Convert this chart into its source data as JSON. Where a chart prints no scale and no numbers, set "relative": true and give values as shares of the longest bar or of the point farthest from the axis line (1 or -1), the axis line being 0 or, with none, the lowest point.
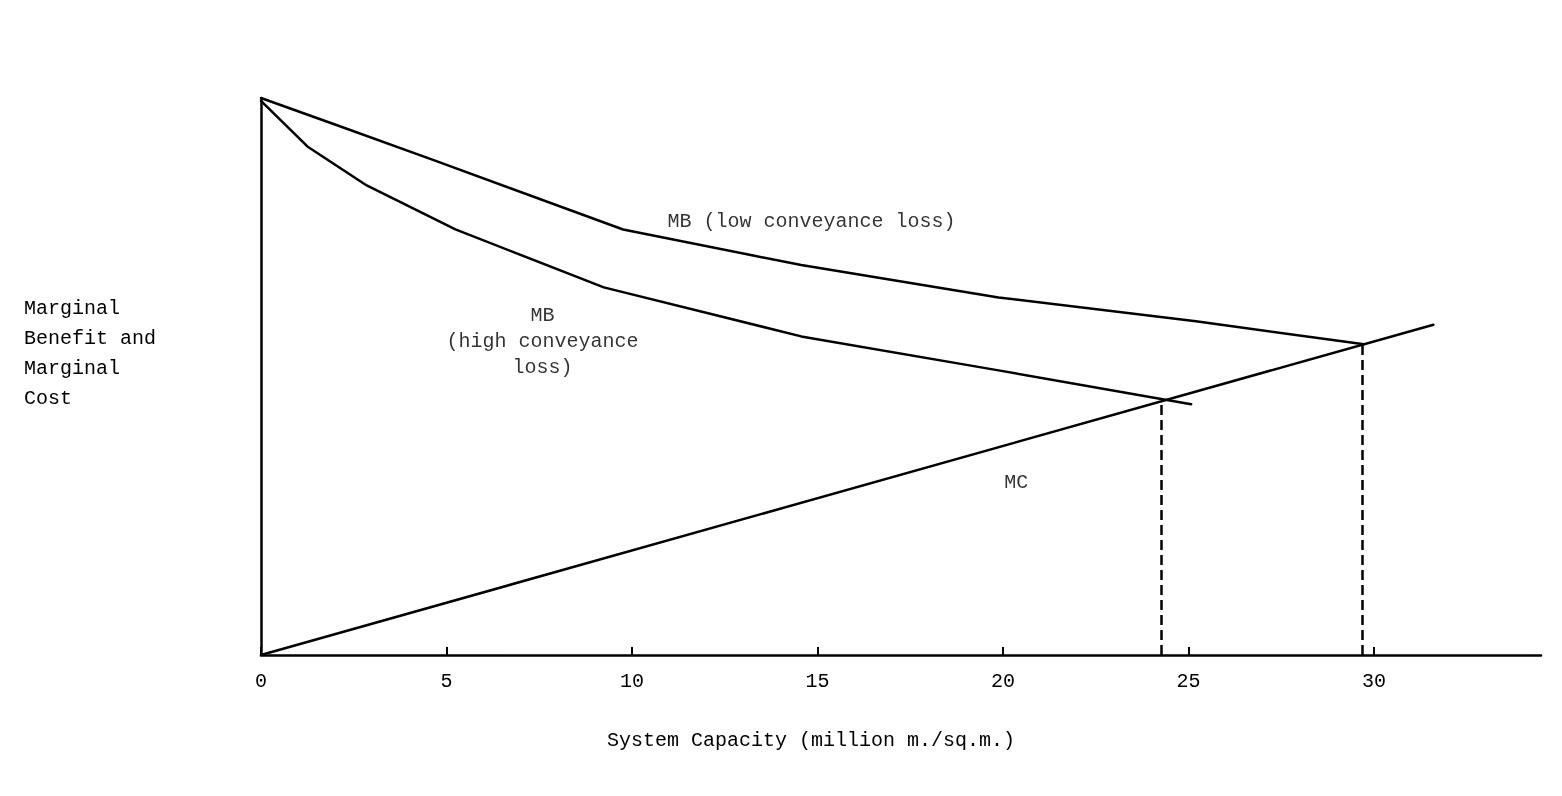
{
  "chart_data": {
    "type": "line",
    "relative": true,
    "xlabel": "System Capacity (million m./sq.m.)",
    "ylabel": "Marginal\nBenefit and\nMarginal\nCost",
    "xlim": [
      0,
      34.5
    ],
    "xticks": [
      0,
      5,
      10,
      15,
      20,
      25,
      30
    ],
    "grid": false,
    "legend": false,
    "marker": "none",
    "line_style": "solid",
    "series": [
      {
        "name": "MB (low conveyance loss)",
        "color": "#000000",
        "x": [
          0,
          2.05,
          4.71,
          9.76,
          14.56,
          19.88,
          25.2,
          29.73
        ],
        "values": [
          1,
          0.951,
          0.887,
          0.764,
          0.7,
          0.642,
          0.599,
          0.558
        ]
      },
      {
        "name": "MB\n(high conveyance\nloss)",
        "color": "#000000",
        "x": [
          0,
          1.25,
          2.85,
          5.24,
          9.24,
          14.56,
          19.88,
          25.07
        ],
        "values": [
          0.995,
          0.913,
          0.843,
          0.764,
          0.66,
          0.572,
          0.511,
          0.45
        ]
      },
      {
        "name": "MC",
        "color": "#000000",
        "x": [
          0,
          31.6
        ],
        "values": [
          0,
          0.593
        ]
      }
    ],
    "ref_lines": [
      {
        "axis": "x",
        "value": 24.27,
        "line_style": "dashed",
        "color": "#000000"
      },
      {
        "axis": "x",
        "value": 29.68,
        "line_style": "dashed",
        "color": "#000000"
      }
    ]
  }
}
